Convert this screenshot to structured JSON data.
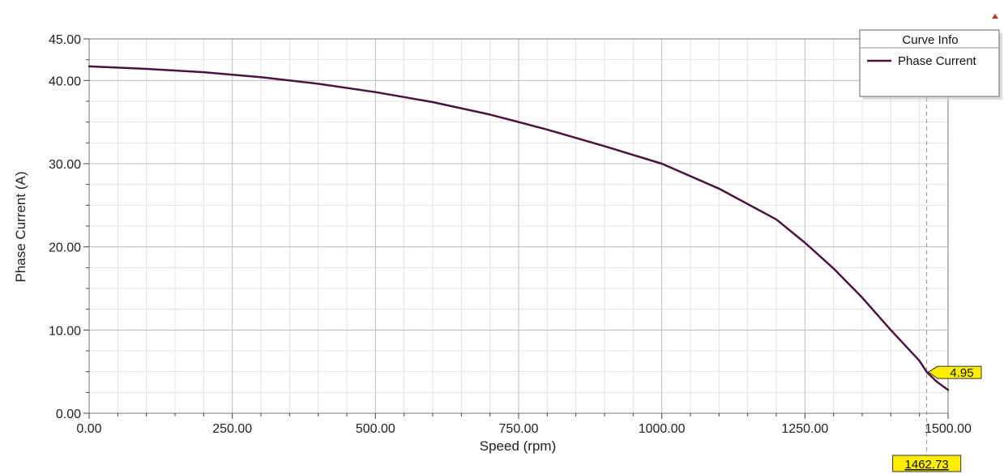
{
  "chart_data": {
    "type": "line",
    "xlabel": "Speed (rpm)",
    "ylabel": "Phase Current (A)",
    "xlim": [
      0,
      1500
    ],
    "ylim": [
      0,
      45
    ],
    "x_ticks": [
      "0.00",
      "250.00",
      "500.00",
      "750.00",
      "1000.00",
      "1250.00",
      "1500.00"
    ],
    "y_ticks": [
      "0.00",
      "10.00",
      "20.00",
      "30.00",
      "40.00",
      "45.00"
    ],
    "grid": true,
    "legend": {
      "title": "Curve Info",
      "position": "top-right"
    },
    "series": [
      {
        "name": "Phase Current",
        "color": "#4b1240",
        "x": [
          0,
          100,
          200,
          300,
          400,
          500,
          600,
          700,
          800,
          900,
          1000,
          1100,
          1200,
          1250,
          1300,
          1350,
          1400,
          1450,
          1462.73,
          1480,
          1500
        ],
        "y": [
          41.7,
          41.4,
          41.0,
          40.4,
          39.6,
          38.6,
          37.4,
          35.9,
          34.1,
          32.1,
          30.0,
          27.0,
          23.3,
          20.5,
          17.4,
          13.9,
          10.0,
          6.3,
          4.95,
          3.8,
          2.8
        ]
      }
    ],
    "marker": {
      "x": "1462.73",
      "y": "4.95"
    }
  }
}
